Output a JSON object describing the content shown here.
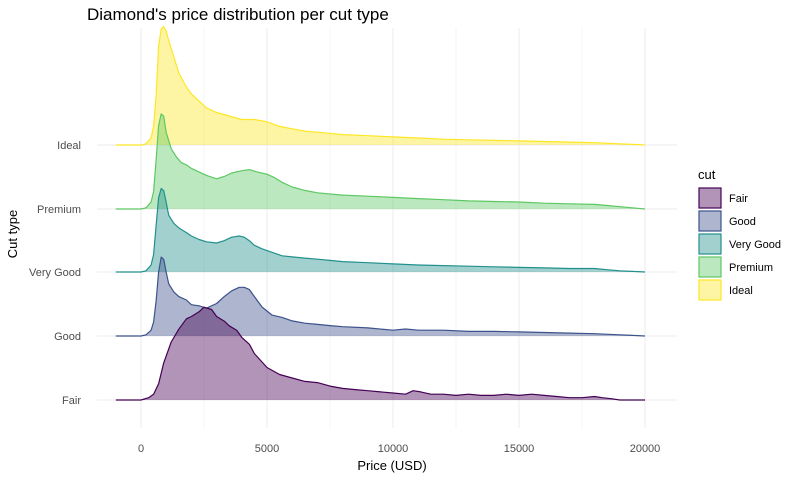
{
  "chart_data": {
    "type": "area",
    "subtype": "ridgeline-density",
    "title": "Diamond's price distribution per cut type",
    "xlabel": "Price (USD)",
    "ylabel": "Cut type",
    "xlim": [
      -1000,
      20500
    ],
    "x_ticks": [
      0,
      5000,
      10000,
      15000,
      20000
    ],
    "x_tick_labels": [
      "0",
      "5000",
      "10000",
      "15000",
      "20000"
    ],
    "grid": true,
    "legend": {
      "title": "cut",
      "placement": "right"
    },
    "colors": {
      "Fair": "#440154",
      "Good": "#3b528b",
      "Very Good": "#21908c",
      "Premium": "#5dc863",
      "Ideal": "#fde725"
    },
    "categories": [
      "Fair",
      "Good",
      "Very Good",
      "Premium",
      "Ideal"
    ],
    "series": [
      {
        "name": "Fair",
        "x": [
          -1000,
          0,
          300,
          500,
          700,
          900,
          1200,
          1500,
          1800,
          2000,
          2300,
          2500,
          2800,
          3000,
          3300,
          3500,
          3800,
          4000,
          4300,
          4500,
          5000,
          5500,
          6000,
          6500,
          7000,
          7500,
          8000,
          8500,
          9000,
          9500,
          10000,
          10500,
          10800,
          11100,
          11500,
          12000,
          12500,
          13000,
          13500,
          14000,
          14500,
          15000,
          15500,
          16000,
          16500,
          17000,
          17500,
          18000,
          18300,
          18700,
          19000,
          20000
        ],
        "y": [
          0,
          0,
          0.02,
          0.05,
          0.14,
          0.32,
          0.5,
          0.61,
          0.7,
          0.72,
          0.76,
          0.8,
          0.78,
          0.72,
          0.68,
          0.64,
          0.6,
          0.54,
          0.48,
          0.4,
          0.28,
          0.22,
          0.19,
          0.16,
          0.15,
          0.12,
          0.1,
          0.09,
          0.08,
          0.07,
          0.06,
          0.05,
          0.08,
          0.07,
          0.05,
          0.05,
          0.04,
          0.05,
          0.04,
          0.04,
          0.05,
          0.04,
          0.05,
          0.04,
          0.03,
          0.02,
          0.02,
          0.03,
          0.02,
          0.01,
          0,
          0
        ]
      },
      {
        "name": "Good",
        "x": [
          -1000,
          0,
          200,
          400,
          500,
          600,
          700,
          800,
          900,
          1000,
          1100,
          1300,
          1500,
          1800,
          2000,
          2300,
          2600,
          3000,
          3300,
          3600,
          3900,
          4100,
          4300,
          4500,
          4800,
          5200,
          5600,
          6000,
          6500,
          7000,
          7500,
          8000,
          9000,
          10000,
          10500,
          11000,
          12000,
          13000,
          14000,
          15000,
          16000,
          17000,
          18000,
          19000,
          19500,
          20000
        ],
        "y": [
          0,
          0,
          0.01,
          0.05,
          0.12,
          0.3,
          0.55,
          0.68,
          0.66,
          0.55,
          0.45,
          0.38,
          0.34,
          0.31,
          0.27,
          0.26,
          0.24,
          0.28,
          0.34,
          0.39,
          0.42,
          0.42,
          0.4,
          0.34,
          0.25,
          0.18,
          0.16,
          0.13,
          0.11,
          0.1,
          0.09,
          0.08,
          0.07,
          0.05,
          0.06,
          0.05,
          0.05,
          0.04,
          0.04,
          0.035,
          0.03,
          0.025,
          0.02,
          0.01,
          0.005,
          0
        ]
      },
      {
        "name": "Very Good",
        "x": [
          -1000,
          0,
          200,
          400,
          500,
          600,
          700,
          800,
          900,
          1000,
          1100,
          1300,
          1500,
          1800,
          2000,
          2300,
          2600,
          3000,
          3300,
          3600,
          3900,
          4100,
          4300,
          4500,
          4800,
          5200,
          5600,
          6000,
          6500,
          7000,
          7500,
          8000,
          9000,
          10000,
          11000,
          12000,
          13000,
          14000,
          15000,
          16000,
          17000,
          18000,
          18500,
          19000,
          19500,
          20000
        ],
        "y": [
          0,
          0,
          0.01,
          0.06,
          0.15,
          0.4,
          0.64,
          0.72,
          0.7,
          0.6,
          0.49,
          0.42,
          0.38,
          0.34,
          0.31,
          0.28,
          0.26,
          0.25,
          0.27,
          0.3,
          0.31,
          0.3,
          0.27,
          0.23,
          0.2,
          0.17,
          0.14,
          0.13,
          0.12,
          0.11,
          0.1,
          0.09,
          0.08,
          0.07,
          0.06,
          0.055,
          0.05,
          0.045,
          0.04,
          0.035,
          0.03,
          0.03,
          0.02,
          0.01,
          0.005,
          0
        ]
      },
      {
        "name": "Premium",
        "x": [
          -1000,
          0,
          200,
          400,
          500,
          600,
          700,
          800,
          900,
          1000,
          1200,
          1400,
          1600,
          1800,
          2000,
          2300,
          2600,
          3000,
          3300,
          3600,
          4000,
          4300,
          4600,
          5000,
          5300,
          5600,
          6000,
          6500,
          7000,
          8000,
          9000,
          10000,
          11000,
          12000,
          13000,
          14000,
          15000,
          16000,
          17000,
          18000,
          18500,
          19000,
          19500,
          20000
        ],
        "y": [
          0,
          0,
          0.01,
          0.06,
          0.15,
          0.42,
          0.72,
          0.82,
          0.8,
          0.66,
          0.52,
          0.45,
          0.4,
          0.38,
          0.35,
          0.32,
          0.29,
          0.26,
          0.28,
          0.31,
          0.33,
          0.34,
          0.32,
          0.3,
          0.27,
          0.23,
          0.19,
          0.16,
          0.14,
          0.12,
          0.11,
          0.1,
          0.09,
          0.08,
          0.07,
          0.065,
          0.06,
          0.05,
          0.045,
          0.04,
          0.03,
          0.02,
          0.01,
          0
        ]
      },
      {
        "name": "Ideal",
        "x": [
          -1000,
          0,
          200,
          400,
          500,
          600,
          700,
          800,
          900,
          1000,
          1100,
          1300,
          1500,
          1800,
          2000,
          2300,
          2600,
          3000,
          3500,
          4000,
          4500,
          5000,
          5500,
          6000,
          6500,
          7000,
          8000,
          9000,
          10000,
          11000,
          12000,
          13000,
          14000,
          15000,
          16000,
          17000,
          18000,
          19000,
          19500,
          20000
        ],
        "y": [
          0,
          0,
          0.01,
          0.06,
          0.16,
          0.42,
          0.85,
          1.0,
          1.02,
          0.98,
          0.9,
          0.76,
          0.62,
          0.5,
          0.44,
          0.38,
          0.32,
          0.28,
          0.25,
          0.22,
          0.22,
          0.2,
          0.16,
          0.14,
          0.12,
          0.11,
          0.09,
          0.08,
          0.07,
          0.06,
          0.05,
          0.045,
          0.04,
          0.035,
          0.03,
          0.025,
          0.02,
          0.01,
          0.005,
          0
        ]
      }
    ]
  }
}
